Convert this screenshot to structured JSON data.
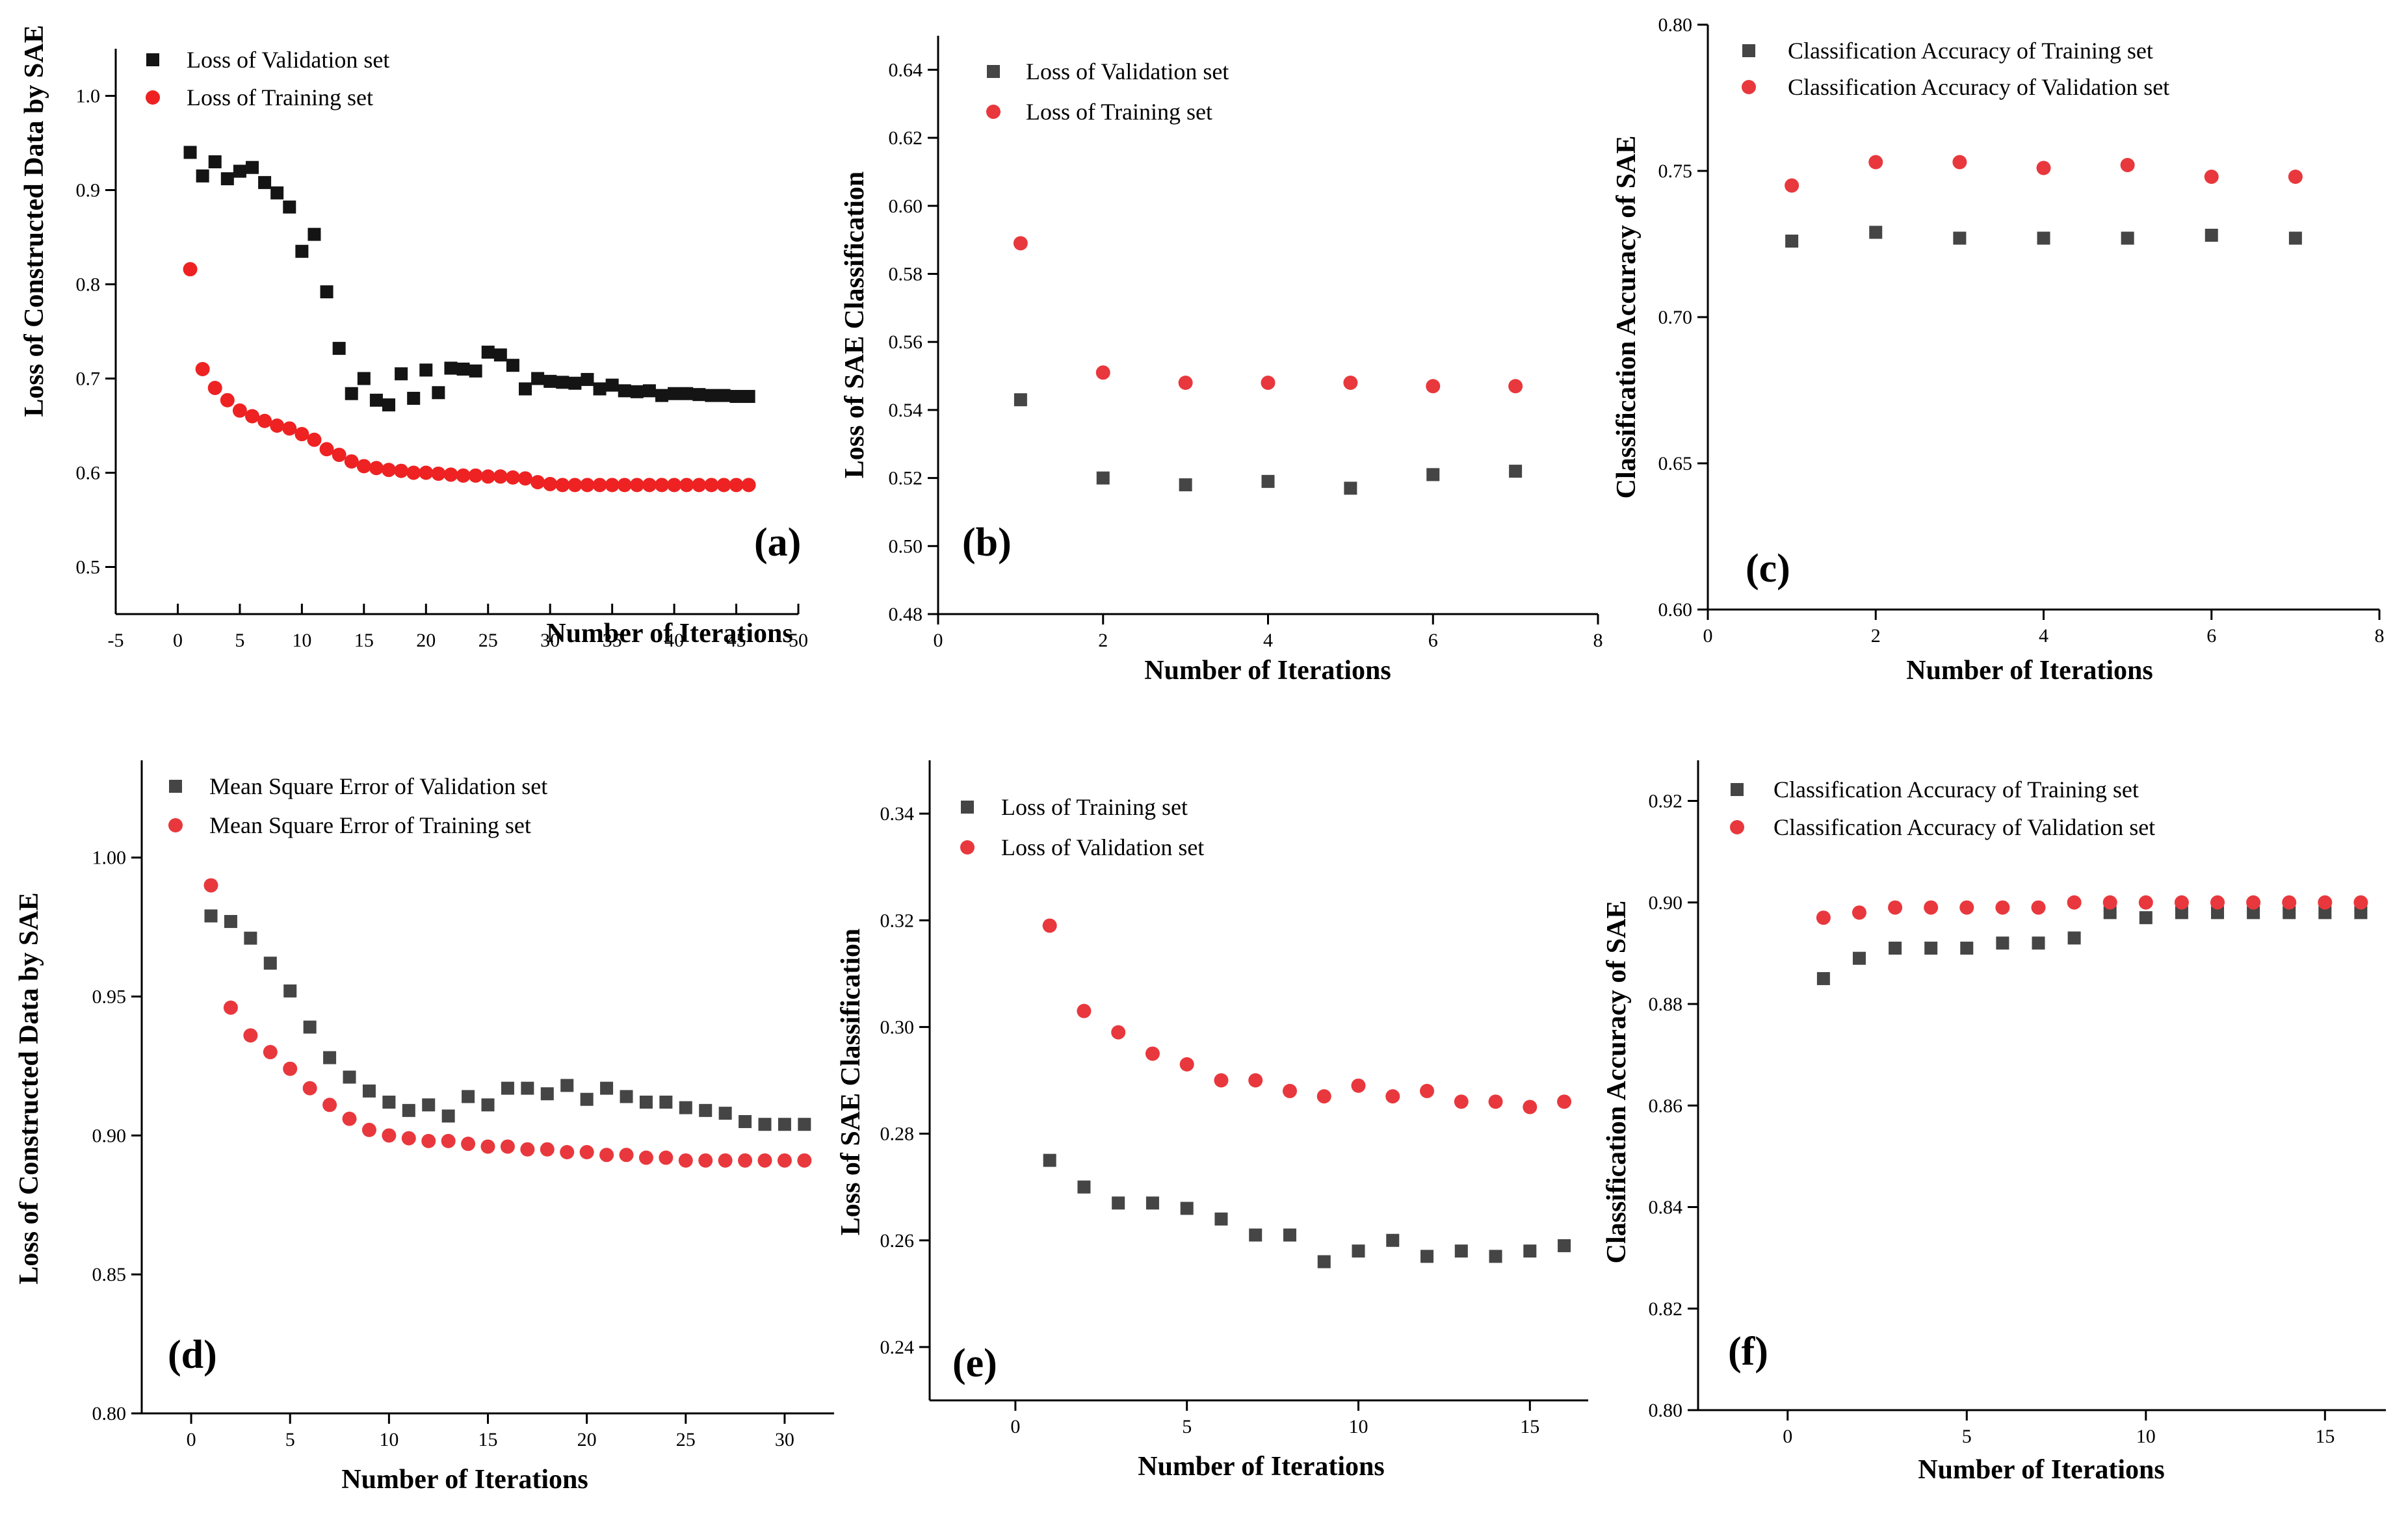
{
  "figure": {
    "colors": {
      "series_black": "#141414",
      "series_gray": "#454545",
      "series_red": "#ee2222",
      "series_red_light": "#e8383d",
      "axis": "#000000"
    }
  },
  "chart_data": [
    {
      "type": "scatter",
      "panel": "(a)",
      "xlabel": "Number of  Iterations",
      "ylabel": "Loss of  Constructed Data by SAE",
      "xlim": [
        -5,
        50
      ],
      "ylim": [
        0.45,
        1.05
      ],
      "xticks": [
        -5,
        0,
        5,
        10,
        15,
        20,
        25,
        30,
        35,
        40,
        45,
        50
      ],
      "xtick_labels": [
        "-5",
        "0",
        "5",
        "10",
        "15",
        "20",
        "25",
        "30",
        "35",
        "40",
        "45",
        "50"
      ],
      "yticks": [
        0.5,
        0.6,
        0.7,
        0.8,
        0.9,
        1.0
      ],
      "ytick_labels": [
        "0.5",
        "0.6",
        "0.7",
        "0.8",
        "0.9",
        "1.0"
      ],
      "legend_position": "top-left",
      "series": [
        {
          "name": "Loss of Validation set",
          "marker": "square",
          "color": "#141414",
          "x": [
            1,
            2,
            3,
            4,
            5,
            6,
            7,
            8,
            9,
            10,
            11,
            12,
            13,
            14,
            15,
            16,
            17,
            18,
            19,
            20,
            21,
            22,
            23,
            24,
            25,
            26,
            27,
            28,
            29,
            30,
            31,
            32,
            33,
            34,
            35,
            36,
            37,
            38,
            39,
            40,
            41,
            42,
            43,
            44,
            45,
            46
          ],
          "y": [
            0.94,
            0.915,
            0.93,
            0.912,
            0.92,
            0.924,
            0.908,
            0.897,
            0.882,
            0.835,
            0.853,
            0.792,
            0.732,
            0.684,
            0.7,
            0.677,
            0.672,
            0.705,
            0.679,
            0.709,
            0.685,
            0.711,
            0.71,
            0.708,
            0.728,
            0.725,
            0.714,
            0.689,
            0.7,
            0.697,
            0.696,
            0.695,
            0.699,
            0.689,
            0.693,
            0.687,
            0.686,
            0.687,
            0.682,
            0.684,
            0.684,
            0.683,
            0.682,
            0.682,
            0.681,
            0.681
          ]
        },
        {
          "name": "Loss of Training set",
          "marker": "circle",
          "color": "#ee2222",
          "x": [
            1,
            2,
            3,
            4,
            5,
            6,
            7,
            8,
            9,
            10,
            11,
            12,
            13,
            14,
            15,
            16,
            17,
            18,
            19,
            20,
            21,
            22,
            23,
            24,
            25,
            26,
            27,
            28,
            29,
            30,
            31,
            32,
            33,
            34,
            35,
            36,
            37,
            38,
            39,
            40,
            41,
            42,
            43,
            44,
            45,
            46
          ],
          "y": [
            0.816,
            0.71,
            0.69,
            0.677,
            0.666,
            0.66,
            0.655,
            0.65,
            0.647,
            0.641,
            0.635,
            0.625,
            0.619,
            0.612,
            0.607,
            0.605,
            0.603,
            0.602,
            0.6,
            0.6,
            0.599,
            0.598,
            0.597,
            0.597,
            0.596,
            0.596,
            0.595,
            0.594,
            0.59,
            0.588,
            0.587,
            0.587,
            0.587,
            0.587,
            0.587,
            0.587,
            0.587,
            0.587,
            0.587,
            0.587,
            0.587,
            0.587,
            0.587,
            0.587,
            0.587,
            0.587
          ]
        }
      ]
    },
    {
      "type": "scatter",
      "panel": "(b)",
      "xlabel": "Number of Iterations",
      "ylabel": "Loss of SAE Classification",
      "xlim": [
        0,
        8
      ],
      "ylim": [
        0.48,
        0.65
      ],
      "xticks": [
        0,
        2,
        4,
        6,
        8
      ],
      "xtick_labels": [
        "0",
        "2",
        "4",
        "6",
        "8"
      ],
      "yticks": [
        0.48,
        0.5,
        0.52,
        0.54,
        0.56,
        0.58,
        0.6,
        0.62,
        0.64
      ],
      "ytick_labels": [
        "0.48",
        "0.50",
        "0.52",
        "0.54",
        "0.56",
        "0.58",
        "0.60",
        "0.62",
        "0.64"
      ],
      "legend_position": "top-left",
      "series": [
        {
          "name": "Loss of Validation set",
          "marker": "square",
          "color": "#454545",
          "x": [
            1,
            2,
            3,
            4,
            5,
            6,
            7
          ],
          "y": [
            0.543,
            0.52,
            0.518,
            0.519,
            0.517,
            0.521,
            0.522
          ]
        },
        {
          "name": "Loss of Training set",
          "marker": "circle",
          "color": "#e8383d",
          "x": [
            1,
            2,
            3,
            4,
            5,
            6,
            7
          ],
          "y": [
            0.589,
            0.551,
            0.548,
            0.548,
            0.548,
            0.547,
            0.547
          ]
        }
      ]
    },
    {
      "type": "scatter",
      "panel": "(c)",
      "xlabel": "Number of Iterations",
      "ylabel": "Classification Accuracy of SAE",
      "xlim": [
        0,
        8
      ],
      "ylim": [
        0.6,
        0.8
      ],
      "xticks": [
        0,
        2,
        4,
        6,
        8
      ],
      "xtick_labels": [
        "0",
        "2",
        "4",
        "6",
        "8"
      ],
      "yticks": [
        0.6,
        0.65,
        0.7,
        0.75,
        0.8
      ],
      "ytick_labels": [
        "0.60",
        "0.65",
        "0.70",
        "0.75",
        "0.80"
      ],
      "legend_position": "top",
      "series": [
        {
          "name": "Classification Accuracy of Training set",
          "marker": "square",
          "color": "#454545",
          "x": [
            1,
            2,
            3,
            4,
            5,
            6,
            7
          ],
          "y": [
            0.726,
            0.729,
            0.727,
            0.727,
            0.727,
            0.728,
            0.727
          ]
        },
        {
          "name": "Classification Accuracy of Validation set",
          "marker": "circle",
          "color": "#e8383d",
          "x": [
            1,
            2,
            3,
            4,
            5,
            6,
            7
          ],
          "y": [
            0.745,
            0.753,
            0.753,
            0.751,
            0.752,
            0.748,
            0.748
          ]
        }
      ]
    },
    {
      "type": "scatter",
      "panel": "(d)",
      "xlabel": "Number of Iterations",
      "ylabel": "Loss of  Constructed Data by SAE",
      "xlim": [
        -2.5,
        32.5
      ],
      "ylim": [
        0.8,
        1.035
      ],
      "xticks": [
        0,
        5,
        10,
        15,
        20,
        25,
        30
      ],
      "xtick_labels": [
        "0",
        "5",
        "10",
        "15",
        "20",
        "25",
        "30"
      ],
      "yticks": [
        0.8,
        0.85,
        0.9,
        0.95,
        1.0
      ],
      "ytick_labels": [
        "0.80",
        "0.85",
        "0.90",
        "0.95",
        "1.00"
      ],
      "legend_position": "top-left",
      "series": [
        {
          "name": "Mean Square Error of Validation set",
          "marker": "square",
          "color": "#454545",
          "x": [
            1,
            2,
            3,
            4,
            5,
            6,
            7,
            8,
            9,
            10,
            11,
            12,
            13,
            14,
            15,
            16,
            17,
            18,
            19,
            20,
            21,
            22,
            23,
            24,
            25,
            26,
            27,
            28,
            29,
            30,
            31
          ],
          "y": [
            0.979,
            0.977,
            0.971,
            0.962,
            0.952,
            0.939,
            0.928,
            0.921,
            0.916,
            0.912,
            0.909,
            0.911,
            0.907,
            0.914,
            0.911,
            0.917,
            0.917,
            0.915,
            0.918,
            0.913,
            0.917,
            0.914,
            0.912,
            0.912,
            0.91,
            0.909,
            0.908,
            0.905,
            0.904,
            0.904,
            0.904
          ]
        },
        {
          "name": "Mean Square Error of Training set",
          "marker": "circle",
          "color": "#e8383d",
          "x": [
            1,
            2,
            3,
            4,
            5,
            6,
            7,
            8,
            9,
            10,
            11,
            12,
            13,
            14,
            15,
            16,
            17,
            18,
            19,
            20,
            21,
            22,
            23,
            24,
            25,
            26,
            27,
            28,
            29,
            30,
            31
          ],
          "y": [
            0.99,
            0.946,
            0.936,
            0.93,
            0.924,
            0.917,
            0.911,
            0.906,
            0.902,
            0.9,
            0.899,
            0.898,
            0.898,
            0.897,
            0.896,
            0.896,
            0.895,
            0.895,
            0.894,
            0.894,
            0.893,
            0.893,
            0.892,
            0.892,
            0.891,
            0.891,
            0.891,
            0.891,
            0.891,
            0.891,
            0.891
          ]
        }
      ]
    },
    {
      "type": "scatter",
      "panel": "(e)",
      "xlabel": "Number of Iterations",
      "ylabel": "Loss of SAE Classification",
      "xlim": [
        -2.5,
        16.7
      ],
      "ylim": [
        0.23,
        0.35
      ],
      "xticks": [
        0,
        5,
        10,
        15
      ],
      "xtick_labels": [
        "0",
        "5",
        "10",
        "15"
      ],
      "yticks": [
        0.24,
        0.26,
        0.28,
        0.3,
        0.32,
        0.34
      ],
      "ytick_labels": [
        "0.24",
        "0.26",
        "0.28",
        "0.30",
        "0.32",
        "0.34"
      ],
      "legend_position": "top-left",
      "series": [
        {
          "name": "Loss of Training set",
          "marker": "square",
          "color": "#454545",
          "x": [
            1,
            2,
            3,
            4,
            5,
            6,
            7,
            8,
            9,
            10,
            11,
            12,
            13,
            14,
            15,
            16
          ],
          "y": [
            0.275,
            0.27,
            0.267,
            0.267,
            0.266,
            0.264,
            0.261,
            0.261,
            0.256,
            0.258,
            0.26,
            0.257,
            0.258,
            0.257,
            0.258,
            0.259
          ]
        },
        {
          "name": "Loss of Validation set",
          "marker": "circle",
          "color": "#e8383d",
          "x": [
            1,
            2,
            3,
            4,
            5,
            6,
            7,
            8,
            9,
            10,
            11,
            12,
            13,
            14,
            15,
            16
          ],
          "y": [
            0.319,
            0.303,
            0.299,
            0.295,
            0.293,
            0.29,
            0.29,
            0.288,
            0.287,
            0.289,
            0.287,
            0.288,
            0.286,
            0.286,
            0.285,
            0.286
          ]
        }
      ]
    },
    {
      "type": "scatter",
      "panel": "(f)",
      "xlabel": "Number of Iterations",
      "ylabel": "Classification Accuracy of SAE",
      "xlim": [
        -2.5,
        16.7
      ],
      "ylim": [
        0.8,
        0.928
      ],
      "xticks": [
        0,
        5,
        10,
        15
      ],
      "xtick_labels": [
        "0",
        "5",
        "10",
        "15"
      ],
      "yticks": [
        0.8,
        0.82,
        0.84,
        0.86,
        0.88,
        0.9,
        0.92
      ],
      "ytick_labels": [
        "0.80",
        "0.82",
        "0.84",
        "0.86",
        "0.88",
        "0.90",
        "0.92"
      ],
      "legend_position": "top-left",
      "series": [
        {
          "name": "Classification Accuracy of Training set",
          "marker": "square",
          "color": "#454545",
          "x": [
            1,
            2,
            3,
            4,
            5,
            6,
            7,
            8,
            9,
            10,
            11,
            12,
            13,
            14,
            15,
            16
          ],
          "y": [
            0.885,
            0.889,
            0.891,
            0.891,
            0.891,
            0.892,
            0.892,
            0.893,
            0.898,
            0.897,
            0.898,
            0.898,
            0.898,
            0.898,
            0.898,
            0.898
          ]
        },
        {
          "name": "Classification Accuracy of Validation set",
          "marker": "circle",
          "color": "#e8383d",
          "x": [
            1,
            2,
            3,
            4,
            5,
            6,
            7,
            8,
            9,
            10,
            11,
            12,
            13,
            14,
            15,
            16
          ],
          "y": [
            0.897,
            0.898,
            0.899,
            0.899,
            0.899,
            0.899,
            0.899,
            0.9,
            0.9,
            0.9,
            0.9,
            0.9,
            0.9,
            0.9,
            0.9,
            0.9
          ]
        }
      ]
    }
  ]
}
